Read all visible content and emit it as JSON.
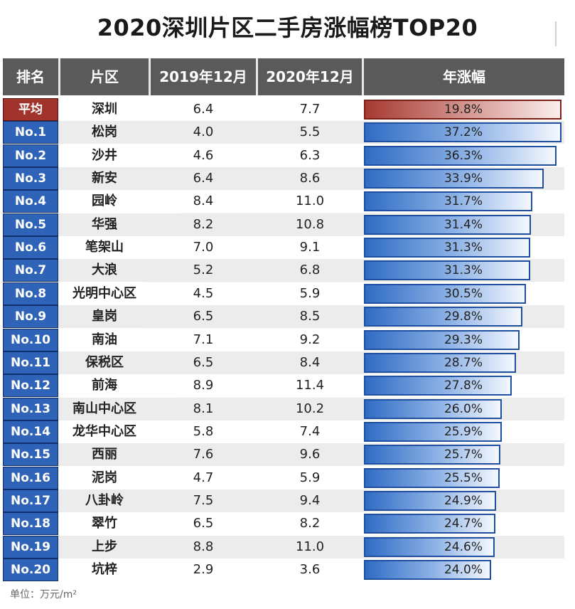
{
  "title": "2020深圳片区二手房涨幅榜TOP20",
  "headers": [
    "排名",
    "片区",
    "2019年12月",
    "2020年12月",
    "年涨幅"
  ],
  "unit_note": "单位：万元/m²",
  "colors": {
    "header_bg": "#5a5a5a",
    "rank_blue": "#2e63b8",
    "avg_red": "#a0332c",
    "bar_blue": "#2f6cc4"
  },
  "chart_data": {
    "type": "table",
    "title": "2020深圳片区二手房涨幅榜TOP20",
    "columns": [
      "排名",
      "片区",
      "2019年12月",
      "2020年12月",
      "年涨幅"
    ],
    "bar_max": 37.2,
    "rows": [
      {
        "rank": "平均",
        "area": "深圳",
        "y2019": "6.4",
        "y2020": "7.7",
        "growth": "19.8%",
        "growth_value": 19.8,
        "is_avg": true
      },
      {
        "rank": "No.1",
        "area": "松岗",
        "y2019": "4.0",
        "y2020": "5.5",
        "growth": "37.2%",
        "growth_value": 37.2
      },
      {
        "rank": "No.2",
        "area": "沙井",
        "y2019": "4.6",
        "y2020": "6.3",
        "growth": "36.3%",
        "growth_value": 36.3
      },
      {
        "rank": "No.3",
        "area": "新安",
        "y2019": "6.4",
        "y2020": "8.6",
        "growth": "33.9%",
        "growth_value": 33.9
      },
      {
        "rank": "No.4",
        "area": "园岭",
        "y2019": "8.4",
        "y2020": "11.0",
        "growth": "31.7%",
        "growth_value": 31.7
      },
      {
        "rank": "No.5",
        "area": "华强",
        "y2019": "8.2",
        "y2020": "10.8",
        "growth": "31.4%",
        "growth_value": 31.4
      },
      {
        "rank": "No.6",
        "area": "笔架山",
        "y2019": "7.0",
        "y2020": "9.1",
        "growth": "31.3%",
        "growth_value": 31.3
      },
      {
        "rank": "No.7",
        "area": "大浪",
        "y2019": "5.2",
        "y2020": "6.8",
        "growth": "31.3%",
        "growth_value": 31.3
      },
      {
        "rank": "No.8",
        "area": "光明中心区",
        "y2019": "4.5",
        "y2020": "5.9",
        "growth": "30.5%",
        "growth_value": 30.5
      },
      {
        "rank": "No.9",
        "area": "皇岗",
        "y2019": "6.5",
        "y2020": "8.5",
        "growth": "29.8%",
        "growth_value": 29.8
      },
      {
        "rank": "No.10",
        "area": "南油",
        "y2019": "7.1",
        "y2020": "9.2",
        "growth": "29.3%",
        "growth_value": 29.3
      },
      {
        "rank": "No.11",
        "area": "保税区",
        "y2019": "6.5",
        "y2020": "8.4",
        "growth": "28.7%",
        "growth_value": 28.7
      },
      {
        "rank": "No.12",
        "area": "前海",
        "y2019": "8.9",
        "y2020": "11.4",
        "growth": "27.8%",
        "growth_value": 27.8
      },
      {
        "rank": "No.13",
        "area": "南山中心区",
        "y2019": "8.1",
        "y2020": "10.2",
        "growth": "26.0%",
        "growth_value": 26.0
      },
      {
        "rank": "No.14",
        "area": "龙华中心区",
        "y2019": "5.8",
        "y2020": "7.4",
        "growth": "25.9%",
        "growth_value": 25.9
      },
      {
        "rank": "No.15",
        "area": "西丽",
        "y2019": "7.6",
        "y2020": "9.6",
        "growth": "25.7%",
        "growth_value": 25.7
      },
      {
        "rank": "No.16",
        "area": "泥岗",
        "y2019": "4.7",
        "y2020": "5.9",
        "growth": "25.5%",
        "growth_value": 25.5
      },
      {
        "rank": "No.17",
        "area": "八卦岭",
        "y2019": "7.5",
        "y2020": "9.4",
        "growth": "24.9%",
        "growth_value": 24.9
      },
      {
        "rank": "No.18",
        "area": "翠竹",
        "y2019": "6.5",
        "y2020": "8.2",
        "growth": "24.7%",
        "growth_value": 24.7
      },
      {
        "rank": "No.19",
        "area": "上步",
        "y2019": "8.8",
        "y2020": "11.0",
        "growth": "24.6%",
        "growth_value": 24.6
      },
      {
        "rank": "No.20",
        "area": "坑梓",
        "y2019": "2.9",
        "y2020": "3.6",
        "growth": "24.0%",
        "growth_value": 24.0
      }
    ]
  }
}
